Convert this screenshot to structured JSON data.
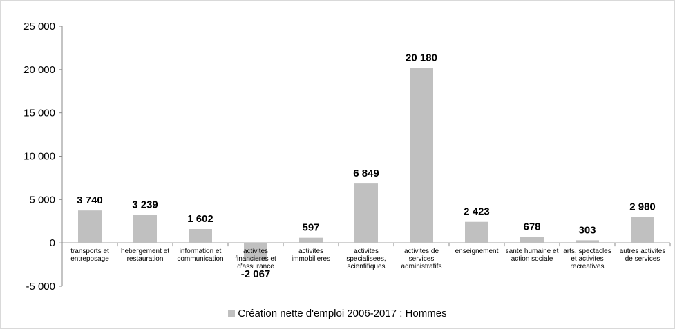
{
  "chart_data": {
    "type": "bar",
    "categories": [
      "transports et entreposage",
      "hebergement et restauration",
      "information et communication",
      "activites financieres et d'assurance",
      "activites immobilieres",
      "activites specialisees, scientifiques",
      "activites de services administratifs",
      "enseignement",
      "sante humaine et action sociale",
      "arts, spectacles et activites recreatives",
      "autres activites de services"
    ],
    "series": [
      {
        "name": "Création nette d'emploi 2006-2017 : Hommes",
        "color": "#c0c0c0",
        "values": [
          3740,
          3239,
          1602,
          -2067,
          597,
          6849,
          20180,
          2423,
          678,
          303,
          2980
        ],
        "value_labels": [
          "3 740",
          "3 239",
          "1 602",
          "-2 067",
          "597",
          "6 849",
          "20 180",
          "2 423",
          "678",
          "303",
          "2 980"
        ]
      }
    ],
    "ylim": [
      -5000,
      25000
    ],
    "yticks": [
      {
        "value": -5000,
        "label": "-5 000"
      },
      0,
      {
        "value": 5000,
        "label": "5 000"
      },
      {
        "value": 10000,
        "label": "10 000"
      },
      {
        "value": 15000,
        "label": "15 000"
      },
      {
        "value": 20000,
        "label": "20 000"
      },
      {
        "value": 25000,
        "label": "25 000"
      }
    ],
    "legend": "bottom"
  }
}
